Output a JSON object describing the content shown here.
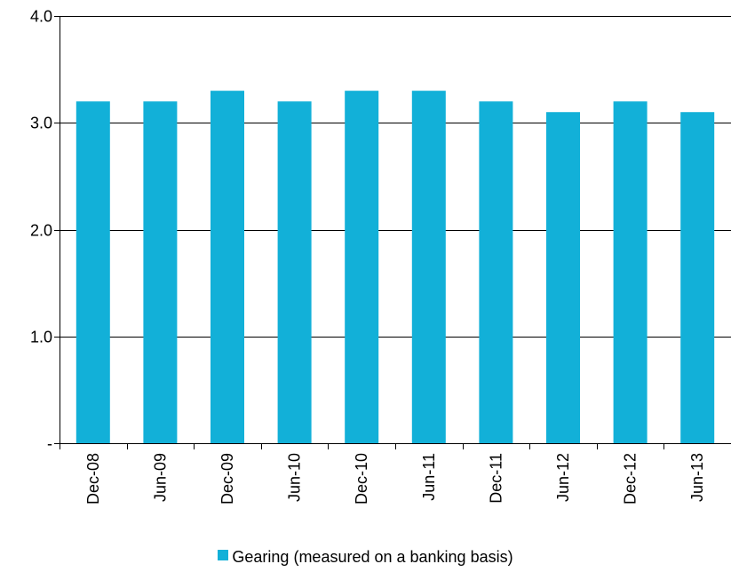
{
  "chart_data": {
    "type": "bar",
    "categories": [
      "Dec-08",
      "Jun-09",
      "Dec-09",
      "Jun-10",
      "Dec-10",
      "Jun-11",
      "Dec-11",
      "Jun-12",
      "Dec-12",
      "Jun-13"
    ],
    "series": [
      {
        "name": "Gearing (measured on a banking basis)",
        "values": [
          3.2,
          3.2,
          3.3,
          3.2,
          3.3,
          3.3,
          3.2,
          3.1,
          3.2,
          3.1
        ]
      }
    ],
    "yticks": [
      {
        "value": 0,
        "label": "-"
      },
      {
        "value": 1,
        "label": "1.0"
      },
      {
        "value": 2,
        "label": "2.0"
      },
      {
        "value": 3,
        "label": "3.0"
      },
      {
        "value": 4,
        "label": "4.0"
      }
    ],
    "ylim": [
      0,
      4
    ],
    "grid": true,
    "legend_position": "bottom",
    "colors": {
      "bar": "#12b0d8",
      "axis": "#000000",
      "grid": "#000000"
    }
  }
}
